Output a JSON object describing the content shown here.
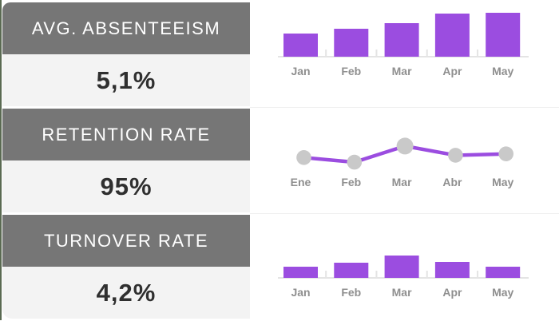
{
  "page": {
    "background": "#ffffff",
    "left_edge_color": "#5a6a52"
  },
  "colors": {
    "header_bg": "#767676",
    "header_text": "#ffffff",
    "panel_bg": "#f3f3f3",
    "value_text": "#2f2f2f",
    "accent_purple": "#9b4de0",
    "marker_gray": "#c9c9c9",
    "axis_gray": "#e4e4e4",
    "label_gray": "#8f8f8f"
  },
  "chart_data": [
    {
      "type": "bar",
      "title": "AVG. ABSENTEEISM",
      "kpi_value": "5,1%",
      "categories": [
        "Jan",
        "Feb",
        "Mar",
        "Apr",
        "May"
      ],
      "values": [
        29,
        35,
        42,
        54,
        55
      ],
      "ylim": [
        0,
        68
      ],
      "baseline_y": 68,
      "grid": false,
      "bar_color": "#9b4de0"
    },
    {
      "type": "line",
      "title": "RETENTION RATE",
      "kpi_value": "95%",
      "categories": [
        "Ene",
        "Feb",
        "Mar",
        "Abr",
        "May"
      ],
      "values": [
        94.5,
        93.5,
        97,
        95,
        95.3
      ],
      "ylim": [
        93,
        97.5
      ],
      "emphasized_point_index": 2,
      "grid": false,
      "line_color": "#9b4de0",
      "marker_color": "#c9c9c9"
    },
    {
      "type": "bar",
      "title": "TURNOVER RATE",
      "kpi_value": "4,2%",
      "categories": [
        "Jan",
        "Feb",
        "Mar",
        "Apr",
        "May"
      ],
      "values": [
        14,
        19,
        28,
        20,
        14
      ],
      "ylim": [
        0,
        68
      ],
      "baseline_y": 79,
      "grid": false,
      "bar_color": "#9b4de0"
    }
  ]
}
